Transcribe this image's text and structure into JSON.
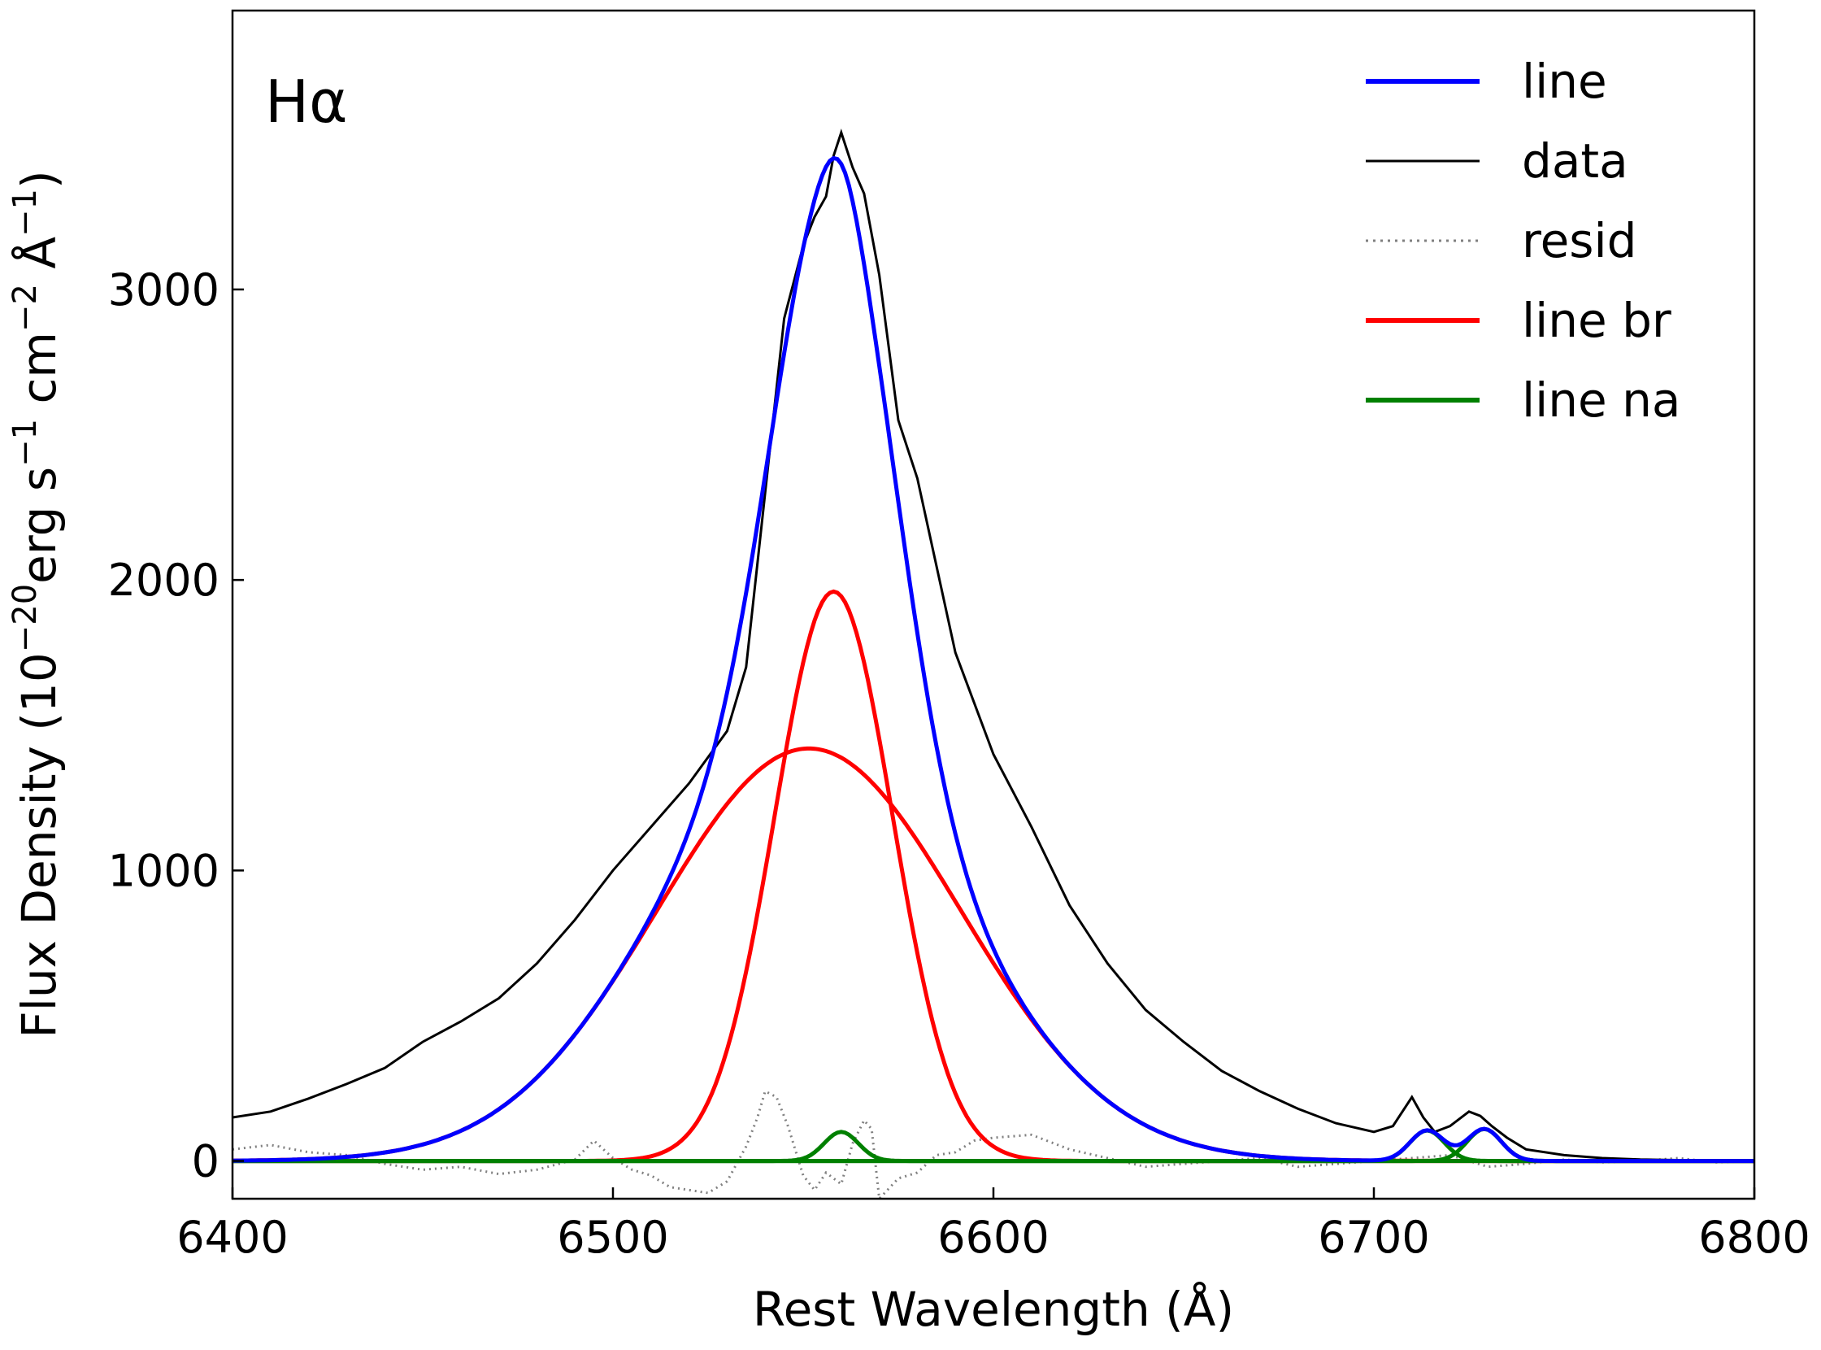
{
  "chart_data": {
    "type": "line",
    "annotation": "Hα",
    "xlabel": "Rest Wavelength (Å)",
    "ylabel": {
      "prefix": "Flux Density (10",
      "exp1": "−20",
      "mid1": "erg s",
      "exp2": "−1",
      "mid2": " cm",
      "exp3": "−2",
      "mid3": " Å",
      "exp4": "−1",
      "suffix": ")"
    },
    "xlim": [
      6400,
      6800
    ],
    "ylim": [
      -130,
      3960
    ],
    "xticks": [
      6400,
      6500,
      6600,
      6700,
      6800
    ],
    "yticks": [
      0,
      1000,
      2000,
      3000
    ],
    "legend_position": "top-right",
    "legend": [
      {
        "label": "line",
        "color": "#0000ff",
        "style": "solid"
      },
      {
        "label": "data",
        "color": "#000000",
        "style": "solid"
      },
      {
        "label": "resid",
        "color": "#808080",
        "style": "dotted"
      },
      {
        "label": "line br",
        "color": "#ff0000",
        "style": "solid"
      },
      {
        "label": "line na",
        "color": "#008000",
        "style": "solid"
      }
    ],
    "model": {
      "broad_components": [
        {
          "center": 6551.5,
          "amplitude": 1420,
          "sigma": 40
        },
        {
          "center": 6558,
          "amplitude": 1960,
          "sigma": 15.5
        }
      ],
      "narrow_components": [
        {
          "center": 6560,
          "amplitude": 100,
          "sigma": 4.5
        },
        {
          "center": 6714,
          "amplitude": 105,
          "sigma": 4.5
        },
        {
          "center": 6729,
          "amplitude": 110,
          "sigma": 4.5
        }
      ],
      "x_step": 1
    },
    "series": [
      {
        "name": "line",
        "color": "#0000ff",
        "description": "total model fit (sum of broad + narrow components)"
      },
      {
        "name": "data",
        "color": "#000000",
        "description": "observed spectrum"
      },
      {
        "name": "resid",
        "color": "#808080",
        "description": "data minus model"
      },
      {
        "name": "line br",
        "color": "#ff0000",
        "description": "broad Gaussian components"
      },
      {
        "name": "line na",
        "color": "#008000",
        "description": "narrow Gaussian components"
      }
    ],
    "data_points": {
      "x": [
        6400,
        6410,
        6420,
        6430,
        6440,
        6450,
        6460,
        6470,
        6480,
        6490,
        6500,
        6510,
        6520,
        6530,
        6535,
        6540,
        6545,
        6550,
        6553,
        6556,
        6558,
        6560,
        6563,
        6566,
        6570,
        6575,
        6580,
        6590,
        6600,
        6610,
        6620,
        6630,
        6640,
        6650,
        6660,
        6670,
        6680,
        6690,
        6700,
        6705,
        6710,
        6713,
        6716,
        6720,
        6725,
        6728,
        6731,
        6735,
        6740,
        6750,
        6760,
        6770,
        6780,
        6790,
        6800
      ],
      "y": [
        150,
        170,
        215,
        265,
        320,
        410,
        480,
        560,
        680,
        830,
        1000,
        1150,
        1300,
        1480,
        1700,
        2300,
        2900,
        3150,
        3250,
        3320,
        3460,
        3540,
        3420,
        3330,
        3050,
        2550,
        2350,
        1750,
        1400,
        1150,
        880,
        680,
        520,
        410,
        310,
        240,
        180,
        130,
        100,
        120,
        220,
        150,
        100,
        120,
        170,
        155,
        120,
        80,
        40,
        20,
        10,
        5,
        3,
        2,
        0
      ]
    },
    "residual_points": {
      "x": [
        6400,
        6410,
        6420,
        6430,
        6440,
        6450,
        6460,
        6470,
        6480,
        6490,
        6495,
        6500,
        6505,
        6510,
        6515,
        6520,
        6525,
        6530,
        6535,
        6538,
        6540,
        6543,
        6546,
        6550,
        6553,
        6556,
        6560,
        6563,
        6566,
        6568,
        6570,
        6575,
        6580,
        6585,
        6590,
        6595,
        6600,
        6610,
        6620,
        6630,
        6640,
        6650,
        6660,
        6670,
        6680,
        6690,
        6700,
        6710,
        6720,
        6730,
        6740,
        6750,
        6760,
        6770,
        6780,
        6790,
        6800
      ],
      "y": [
        40,
        55,
        30,
        20,
        -10,
        -30,
        -20,
        -45,
        -30,
        5,
        70,
        10,
        -30,
        -50,
        -90,
        -100,
        -110,
        -70,
        50,
        150,
        240,
        220,
        120,
        -50,
        -100,
        -40,
        -80,
        60,
        140,
        110,
        -130,
        -60,
        -40,
        20,
        30,
        70,
        80,
        90,
        40,
        10,
        -20,
        -10,
        0,
        10,
        -20,
        -10,
        0,
        10,
        20,
        -20,
        -10,
        5,
        -5,
        0,
        10,
        -5,
        0
      ]
    }
  }
}
